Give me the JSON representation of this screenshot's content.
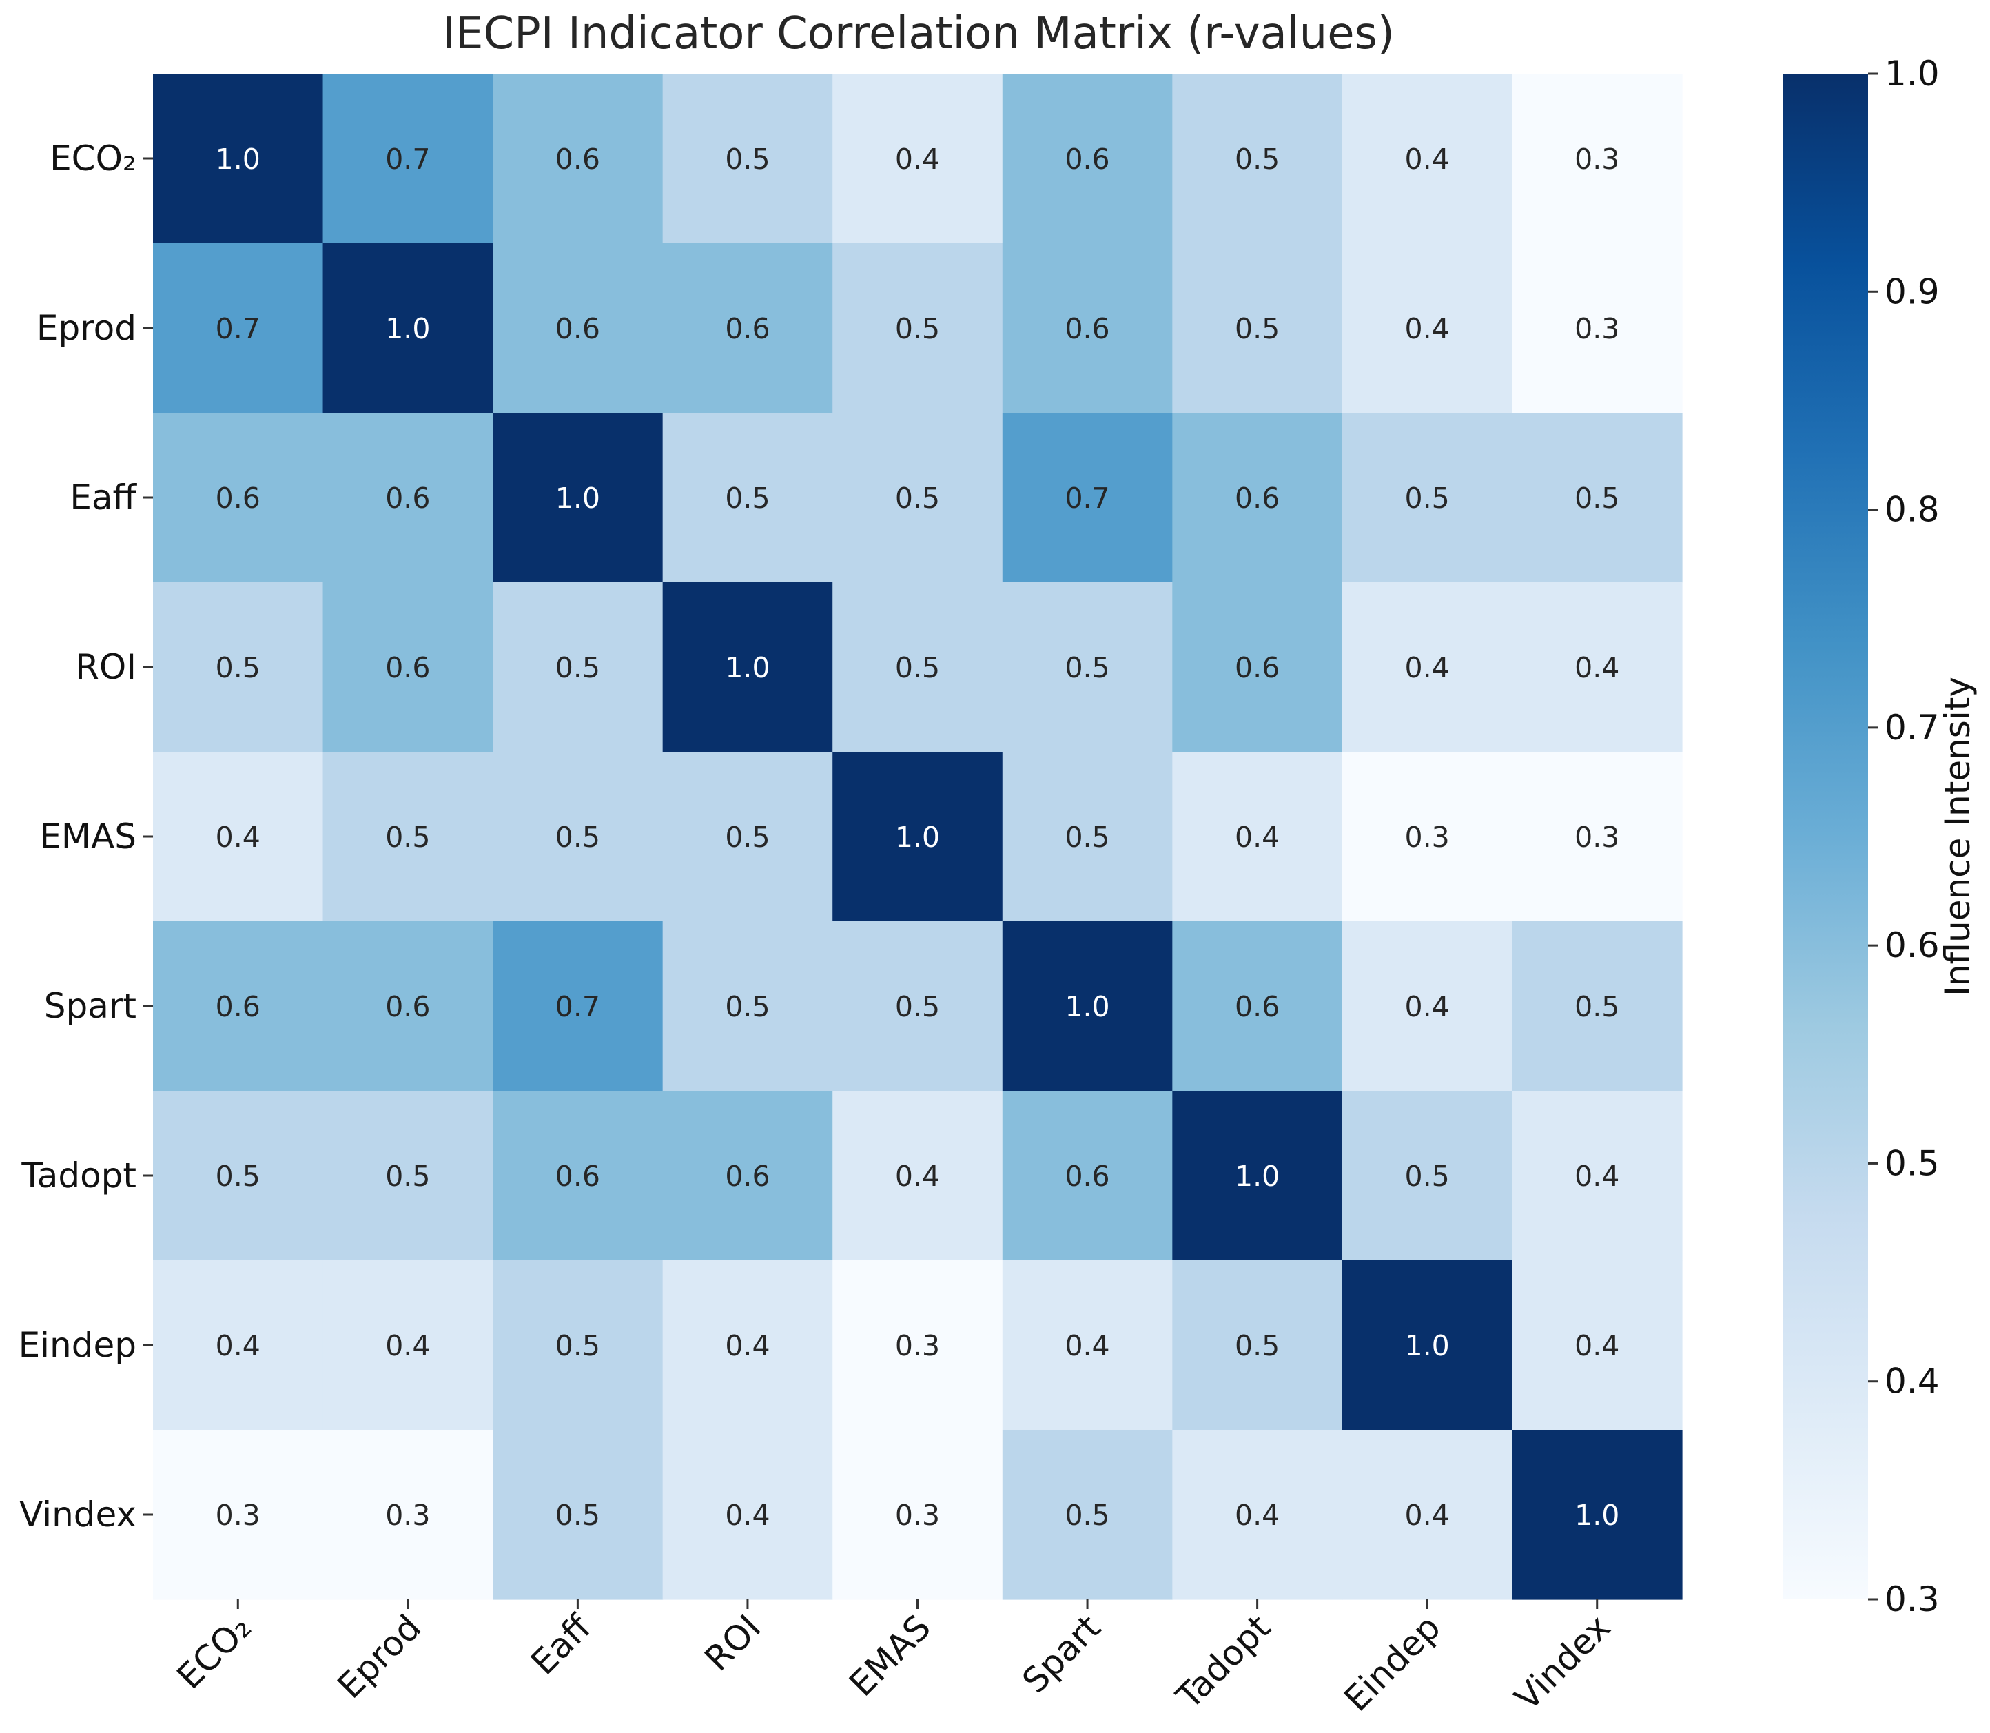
{
  "chart_data": {
    "type": "heatmap",
    "title": "IECPI Indicator Correlation Matrix (r-values)",
    "x_labels": [
      "ECO₂",
      "Eprod",
      "Eaff",
      "ROI",
      "EMAS",
      "Spart",
      "Tadopt",
      "Eindep",
      "Vindex"
    ],
    "y_labels": [
      "ECO₂",
      "Eprod",
      "Eaff",
      "ROI",
      "EMAS",
      "Spart",
      "Tadopt",
      "Eindep",
      "Vindex"
    ],
    "values": [
      [
        1.0,
        0.7,
        0.6,
        0.5,
        0.4,
        0.6,
        0.5,
        0.4,
        0.3
      ],
      [
        0.7,
        1.0,
        0.6,
        0.6,
        0.5,
        0.6,
        0.5,
        0.4,
        0.3
      ],
      [
        0.6,
        0.6,
        1.0,
        0.5,
        0.5,
        0.7,
        0.6,
        0.5,
        0.5
      ],
      [
        0.5,
        0.6,
        0.5,
        1.0,
        0.5,
        0.5,
        0.6,
        0.4,
        0.4
      ],
      [
        0.4,
        0.5,
        0.5,
        0.5,
        1.0,
        0.5,
        0.4,
        0.3,
        0.3
      ],
      [
        0.6,
        0.6,
        0.7,
        0.5,
        0.5,
        1.0,
        0.6,
        0.4,
        0.5
      ],
      [
        0.5,
        0.5,
        0.6,
        0.6,
        0.4,
        0.6,
        1.0,
        0.5,
        0.4
      ],
      [
        0.4,
        0.4,
        0.5,
        0.4,
        0.3,
        0.4,
        0.5,
        1.0,
        0.4
      ],
      [
        0.3,
        0.3,
        0.5,
        0.4,
        0.3,
        0.5,
        0.4,
        0.4,
        1.0
      ]
    ],
    "annotation_format": "0.0",
    "colormap": "Blues",
    "vmin": 0.3,
    "vmax": 1.0,
    "colorbar": {
      "label": "Influence Intensity",
      "ticks": [
        0.3,
        0.4,
        0.5,
        0.6,
        0.7,
        0.8,
        0.9,
        1.0
      ],
      "tick_labels": [
        "0.3",
        "0.4",
        "0.5",
        "0.6",
        "0.7",
        "0.8",
        "0.9",
        "1.0"
      ]
    },
    "legend": "colorbar-right",
    "grid": false
  }
}
